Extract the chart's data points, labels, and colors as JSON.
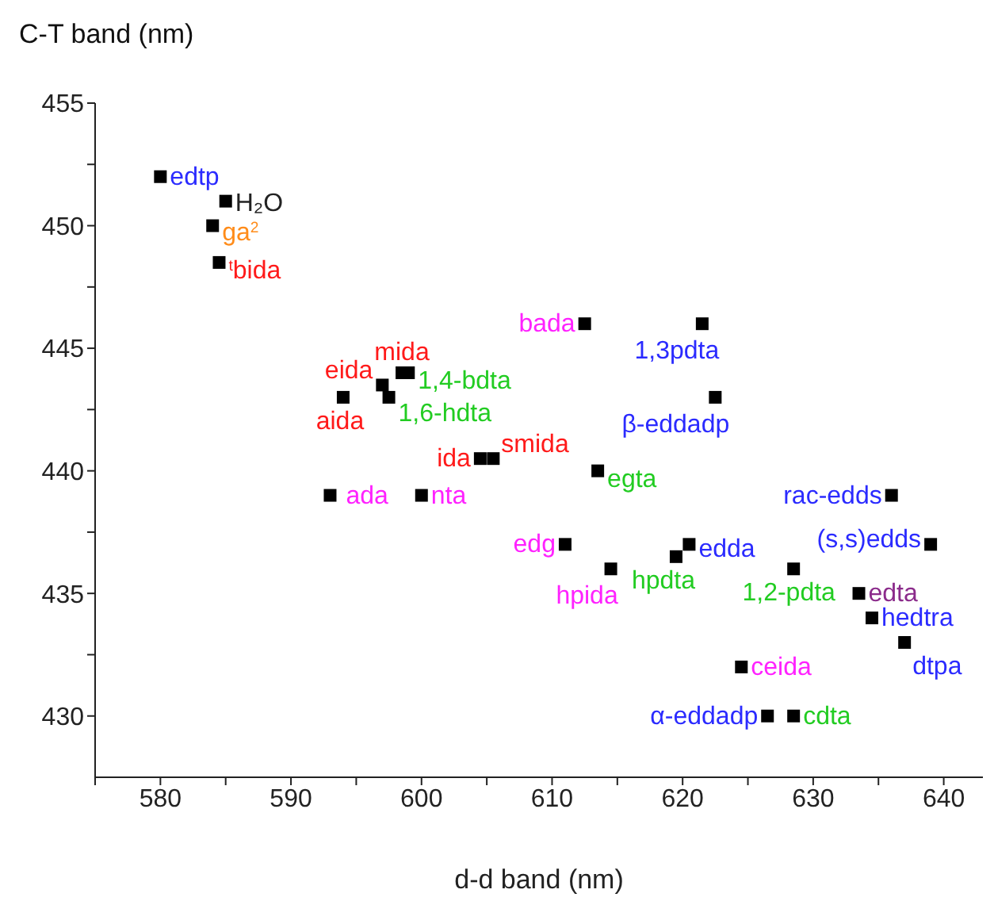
{
  "chart_data": {
    "type": "scatter",
    "xlabel": "d-d band (nm)",
    "ylabel": "C-T band (nm)",
    "x": [
      580,
      585,
      584,
      584.5,
      594,
      597,
      597.5,
      598.5,
      599,
      604.5,
      605.5,
      612.5,
      621.5,
      622.5,
      613.5,
      600,
      593,
      636,
      611,
      620.5,
      619.5,
      639,
      614.5,
      628.5,
      633.5,
      634.5,
      637,
      624.5,
      626.5,
      628.5
    ],
    "series": [
      {
        "color": "#000000",
        "values": [
          452,
          451,
          450,
          448.5,
          443,
          443.5,
          443,
          444,
          444,
          440.5,
          440.5,
          446,
          446,
          443,
          440,
          439,
          439,
          439,
          437,
          437,
          436.5,
          437,
          436,
          436,
          435,
          434,
          433,
          432,
          430,
          430
        ]
      }
    ],
    "xlim": [
      575,
      643
    ],
    "ylim": [
      427.5,
      455
    ],
    "xticks": [
      {
        "value": 575,
        "label": null
      },
      580,
      {
        "value": 585,
        "label": null
      },
      590,
      {
        "value": 595,
        "label": null
      },
      600,
      {
        "value": 605,
        "label": null
      },
      610,
      {
        "value": 615,
        "label": null
      },
      620,
      {
        "value": 625,
        "label": null
      },
      630,
      {
        "value": 635,
        "label": null
      },
      640
    ],
    "yticks": [
      430,
      {
        "value": 432.5,
        "label": null
      },
      435,
      {
        "value": 437.5,
        "label": null
      },
      440,
      {
        "value": 442.5,
        "label": null
      },
      445,
      {
        "value": 447.5,
        "label": null
      },
      450,
      {
        "value": 452.5,
        "label": null
      },
      455
    ],
    "marker": "square",
    "grid": false,
    "legend": false,
    "annotations": [
      {
        "text": "edtp",
        "x": 580,
        "y": 452
      },
      {
        "text": "H₂O",
        "x": 585,
        "y": 451
      },
      {
        "text": "ga$^{2}$",
        "x": 584,
        "y": 450
      },
      {
        "text": "$^{t}$bida",
        "x": 584.5,
        "y": 448.5
      },
      {
        "text": "aida",
        "x": 594,
        "y": 443
      },
      {
        "text": "eida",
        "x": 597,
        "y": 443.5
      },
      {
        "text": "1,6-hdta",
        "x": 597.5,
        "y": 443
      },
      {
        "text": "mida",
        "x": 598.5,
        "y": 444
      },
      {
        "text": "1,4-bdta",
        "x": 599,
        "y": 444
      },
      {
        "text": "ida",
        "x": 604.5,
        "y": 440.5
      },
      {
        "text": "smida",
        "x": 605.5,
        "y": 440.5
      },
      {
        "text": "bada",
        "x": 612.5,
        "y": 446
      },
      {
        "text": "1,3pdta",
        "x": 621.5,
        "y": 446
      },
      {
        "text": "β-eddadp",
        "x": 622.5,
        "y": 443
      },
      {
        "text": "egta",
        "x": 613.5,
        "y": 440
      },
      {
        "text": "nta",
        "x": 600,
        "y": 439
      },
      {
        "text": "ada",
        "x": 593,
        "y": 439
      },
      {
        "text": "rac-edds",
        "x": 636,
        "y": 439
      },
      {
        "text": "edg",
        "x": 611,
        "y": 437
      },
      {
        "text": "edda",
        "x": 620.5,
        "y": 437
      },
      {
        "text": "hpdta",
        "x": 619.5,
        "y": 436.5
      },
      {
        "text": "(s,s)edds",
        "x": 639,
        "y": 437
      },
      {
        "text": "hpida",
        "x": 614.5,
        "y": 436
      },
      {
        "text": "1,2-pdta",
        "x": 628.5,
        "y": 436
      },
      {
        "text": "edta",
        "x": 633.5,
        "y": 435
      },
      {
        "text": "hedtra",
        "x": 634.5,
        "y": 434
      },
      {
        "text": "dtpa",
        "x": 637,
        "y": 433
      },
      {
        "text": "ceida",
        "x": 624.5,
        "y": 432
      },
      {
        "text": "α-eddadp",
        "x": 626.5,
        "y": 430
      },
      {
        "text": "cdta",
        "x": 628.5,
        "y": 430
      }
    ]
  }
}
